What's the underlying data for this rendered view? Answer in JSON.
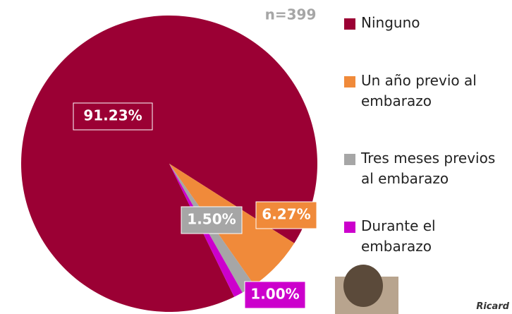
{
  "chart_data": {
    "type": "pie",
    "annotation": "n=399",
    "categories": [
      "Ninguno",
      "Un año previo al embarazo",
      "Tres meses previos al embarazo",
      "Durante el embarazo"
    ],
    "values": [
      91.23,
      6.27,
      1.5,
      1.0
    ],
    "value_labels": [
      "91.23%",
      "6.27%",
      "1.50%",
      "1.00%"
    ],
    "colors": [
      "#9b0034",
      "#f08a3a",
      "#a6a6a6",
      "#cc00cc"
    ]
  }
}
